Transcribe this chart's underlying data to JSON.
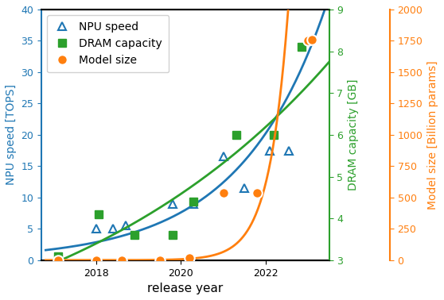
{
  "blue_color": "#1f77b4",
  "green_color": "#2ca02c",
  "orange_color": "#ff7f0e",
  "left_ylabel": "NPU speed [TOPS]",
  "right_ylabel_green": "DRAM capacity [GB]",
  "right_ylabel_orange": "Model size [Billion params]",
  "xlabel": "release year",
  "ylim_left": [
    0,
    40
  ],
  "ylim_green": [
    3,
    9
  ],
  "ylim_orange": [
    0,
    2000
  ],
  "xlim": [
    2016.7,
    2023.5
  ],
  "npu_scatter_years": [
    2017.1,
    2018.0,
    2018.4,
    2018.7,
    2019.8,
    2020.3,
    2021.0,
    2021.5,
    2022.1,
    2022.55
  ],
  "npu_scatter_tops": [
    0.5,
    5.0,
    5.0,
    5.5,
    9.0,
    9.0,
    16.5,
    11.5,
    17.5,
    17.5
  ],
  "dram_scatter_years": [
    2017.1,
    2018.05,
    2018.9,
    2019.8,
    2020.3,
    2021.3,
    2022.2,
    2022.85
  ],
  "dram_scatter_gb": [
    3.1,
    4.1,
    3.6,
    3.6,
    4.4,
    6.0,
    6.0,
    8.1
  ],
  "model_scatter_years": [
    2017.1,
    2018.0,
    2018.6,
    2019.5,
    2020.2,
    2021.0,
    2021.8,
    2023.0,
    2023.1
  ],
  "model_scatter_billions": [
    0,
    0,
    0,
    0,
    15,
    540,
    540,
    1750,
    1760
  ],
  "legend_labels": [
    "NPU speed",
    "DRAM capacity",
    "Model size"
  ],
  "xticks": [
    2018,
    2020,
    2022
  ],
  "yticks_left": [
    0,
    5,
    10,
    15,
    20,
    25,
    30,
    35,
    40
  ],
  "yticks_green": [
    3,
    4,
    5,
    6,
    7,
    8,
    9
  ],
  "yticks_orange": [
    0,
    250,
    500,
    750,
    1000,
    1250,
    1500,
    1750,
    2000
  ]
}
